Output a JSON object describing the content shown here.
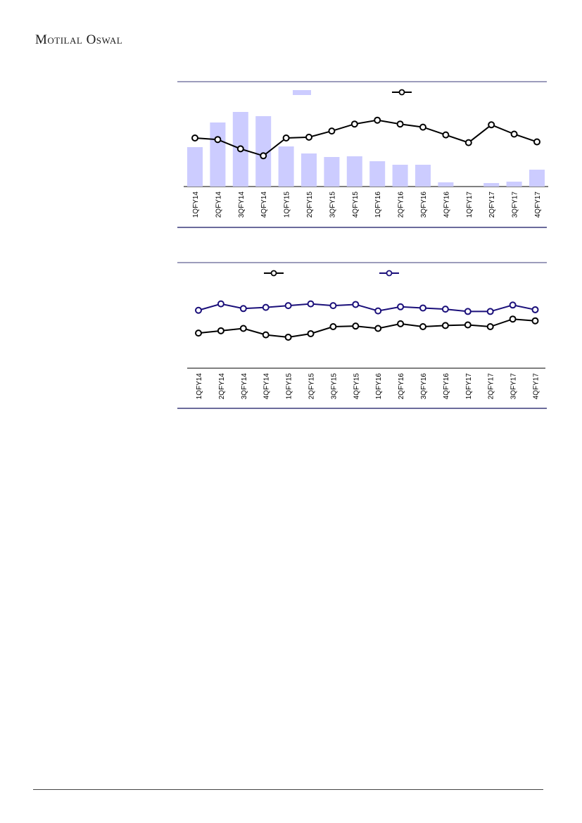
{
  "header": {
    "brand": "Motilal Oswal"
  },
  "colors": {
    "bar_fill": "#ccccff",
    "line_black": "#000000",
    "line_navy": "#1a0f7a",
    "frame": "#3a3a7a"
  },
  "chart_data": [
    {
      "type": "bar+line",
      "categories": [
        "1QFY14",
        "2QFY14",
        "3QFY14",
        "4QFY14",
        "1QFY15",
        "2QFY15",
        "3QFY15",
        "4QFY15",
        "1QFY16",
        "2QFY16",
        "3QFY16",
        "4QFY16",
        "1QFY17",
        "2QFY17",
        "3QFY17",
        "4QFY17"
      ],
      "bar_values": [
        56,
        91,
        106,
        100,
        57,
        47,
        42,
        43,
        36,
        31,
        31,
        6,
        0,
        5,
        7,
        24
      ],
      "line_values": [
        70,
        68,
        56,
        47,
        70,
        71,
        79,
        88,
        93,
        88,
        84,
        74,
        64,
        87,
        75,
        65
      ],
      "legend": {
        "position": "top",
        "entries": [
          "",
          ""
        ]
      },
      "grid": false
    },
    {
      "type": "line",
      "categories": [
        "1QFY14",
        "2QFY14",
        "3QFY14",
        "4QFY14",
        "1QFY15",
        "2QFY15",
        "3QFY15",
        "4QFY15",
        "1QFY16",
        "2QFY16",
        "3QFY16",
        "4QFY16",
        "1QFY17",
        "2QFY17",
        "3QFY17",
        "4QFY17"
      ],
      "series": [
        {
          "color": "#000000",
          "values": [
            42,
            46,
            50,
            39,
            35,
            41,
            53,
            54,
            50,
            58,
            53,
            55,
            56,
            53,
            66,
            63
          ]
        },
        {
          "color": "#1a0f7a",
          "values": [
            81,
            92,
            84,
            86,
            89,
            92,
            89,
            91,
            80,
            87,
            85,
            83,
            79,
            79,
            90,
            82
          ]
        }
      ],
      "legend": {
        "position": "top",
        "entries": [
          "",
          ""
        ]
      },
      "grid": false
    }
  ]
}
